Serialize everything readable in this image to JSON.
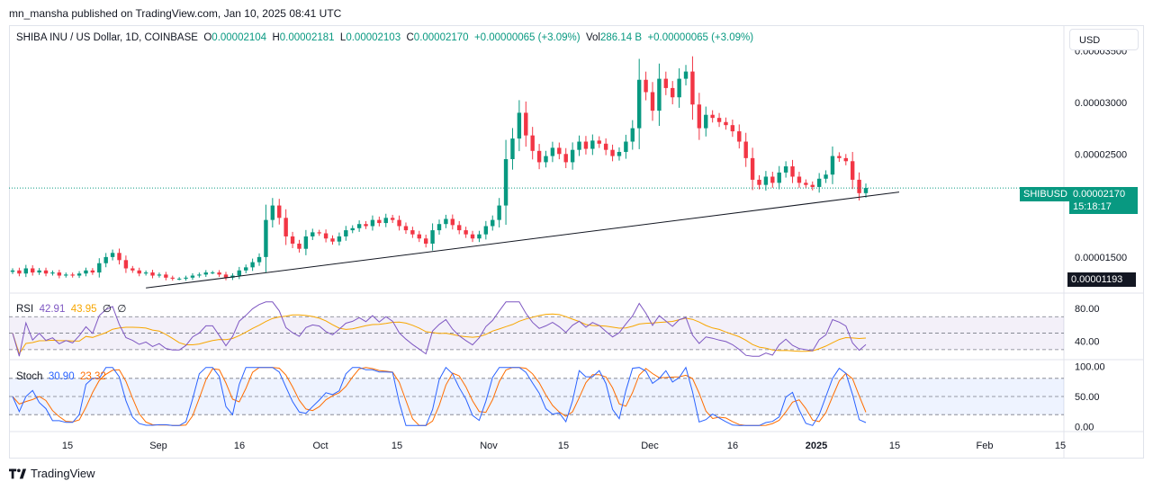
{
  "header": {
    "published": "mn_mansha published on TradingView.com, Jan 10, 2025 08:41 UTC"
  },
  "legend": {
    "symbol": "SHIBA INU / US Dollar, 1D, COINBASE",
    "o_label": "O",
    "o": "0.00002104",
    "h_label": "H",
    "h": "0.00002181",
    "l_label": "L",
    "l": "0.00002103",
    "c_label": "C",
    "c": "0.00002170",
    "change": "+0.00000065 (+3.09%)",
    "vol_label": "Vol",
    "vol": "286.14 B",
    "vol_change": "+0.00000065 (+3.09%)"
  },
  "currency_button": "USD",
  "colors": {
    "up": "#089981",
    "down": "#f23645",
    "rsi": "#7e57c2",
    "rsi_ma": "#f7a600",
    "stoch_k": "#2962ff",
    "stoch_d": "#ff6d00"
  },
  "price_tag": {
    "symbol": "SHIBUSD",
    "price": "0.00002170",
    "countdown": "15:18:17"
  },
  "low_tag": "0.00001193",
  "rsi_legend": {
    "name": "RSI",
    "value": "42.91",
    "ma": "43.95",
    "extra1": "∅",
    "extra2": "∅"
  },
  "stoch_legend": {
    "name": "Stoch",
    "k": "30.90",
    "d": "23.32"
  },
  "brand": "TradingView",
  "chart_data": {
    "type": "candlestick",
    "symbol": "SHIBA INU / US Dollar",
    "timeframe": "1D",
    "y_axis_ticks": [
      "0.00003500",
      "0.00003000",
      "0.00002500",
      "0.00001500"
    ],
    "y_axis_values": [
      3.5e-05,
      3e-05,
      2.5e-05,
      1.5e-05
    ],
    "ylim": [
      1.15e-05,
      3.75e-05
    ],
    "x_axis_ticks": [
      "15",
      "Sep",
      "16",
      "Oct",
      "15",
      "Nov",
      "15",
      "Dec",
      "16",
      "2025",
      "15",
      "Feb",
      "15"
    ],
    "last_price": 2.17e-05,
    "support_line": {
      "from": [
        "Sep 1",
        1.2e-05
      ],
      "to": [
        "Jan 15",
        2.13e-05
      ]
    },
    "closes": [
      1.37e-05,
      1.34e-05,
      1.39e-05,
      1.35e-05,
      1.37e-05,
      1.34e-05,
      1.35e-05,
      1.32e-05,
      1.33e-05,
      1.32e-05,
      1.34e-05,
      1.37e-05,
      1.35e-05,
      1.44e-05,
      1.5e-05,
      1.54e-05,
      1.47e-05,
      1.39e-05,
      1.37e-05,
      1.34e-05,
      1.35e-05,
      1.32e-05,
      1.33e-05,
      1.3e-05,
      1.29e-05,
      1.29e-05,
      1.3e-05,
      1.32e-05,
      1.33e-05,
      1.35e-05,
      1.35e-05,
      1.33e-05,
      1.3e-05,
      1.32e-05,
      1.37e-05,
      1.4e-05,
      1.45e-05,
      1.5e-05,
      1.86e-05,
      2e-05,
      1.88e-05,
      1.7e-05,
      1.63e-05,
      1.58e-05,
      1.7e-05,
      1.74e-05,
      1.73e-05,
      1.68e-05,
      1.65e-05,
      1.7e-05,
      1.76e-05,
      1.78e-05,
      1.82e-05,
      1.8e-05,
      1.86e-05,
      1.83e-05,
      1.88e-05,
      1.86e-05,
      1.8e-05,
      1.76e-05,
      1.72e-05,
      1.68e-05,
      1.63e-05,
      1.76e-05,
      1.82e-05,
      1.87e-05,
      1.81e-05,
      1.76e-05,
      1.72e-05,
      1.68e-05,
      1.72e-05,
      1.8e-05,
      1.86e-05,
      2e-05,
      2.45e-05,
      2.65e-05,
      2.9e-05,
      2.68e-05,
      2.53e-05,
      2.42e-05,
      2.48e-05,
      2.56e-05,
      2.5e-05,
      2.42e-05,
      2.54e-05,
      2.62e-05,
      2.55e-05,
      2.63e-05,
      2.6e-05,
      2.54e-05,
      2.48e-05,
      2.52e-05,
      2.62e-05,
      2.75e-05,
      3.22e-05,
      3.1e-05,
      2.92e-05,
      3.23e-05,
      3.14e-05,
      3.05e-05,
      3.23e-05,
      3.3e-05,
      2.98e-05,
      2.75e-05,
      2.88e-05,
      2.85e-05,
      2.81e-05,
      2.78e-05,
      2.72e-05,
      2.62e-05,
      2.46e-05,
      2.25e-05,
      2.2e-05,
      2.28e-05,
      2.22e-05,
      2.32e-05,
      2.38e-05,
      2.28e-05,
      2.22e-05,
      2.2e-05,
      2.18e-05,
      2.26e-05,
      2.3e-05,
      2.48e-05,
      2.46e-05,
      2.43e-05,
      2.25e-05,
      2.12e-05,
      2.17e-05
    ]
  },
  "rsi_panel": {
    "ticks": [
      "80.00",
      "40.00"
    ],
    "tick_values": [
      80,
      40
    ],
    "bands": [
      70,
      50,
      30
    ]
  },
  "stoch_panel": {
    "ticks": [
      "100.00",
      "50.00",
      "0.00"
    ],
    "tick_values": [
      100,
      50,
      0
    ],
    "bands": [
      80,
      50,
      20
    ]
  }
}
